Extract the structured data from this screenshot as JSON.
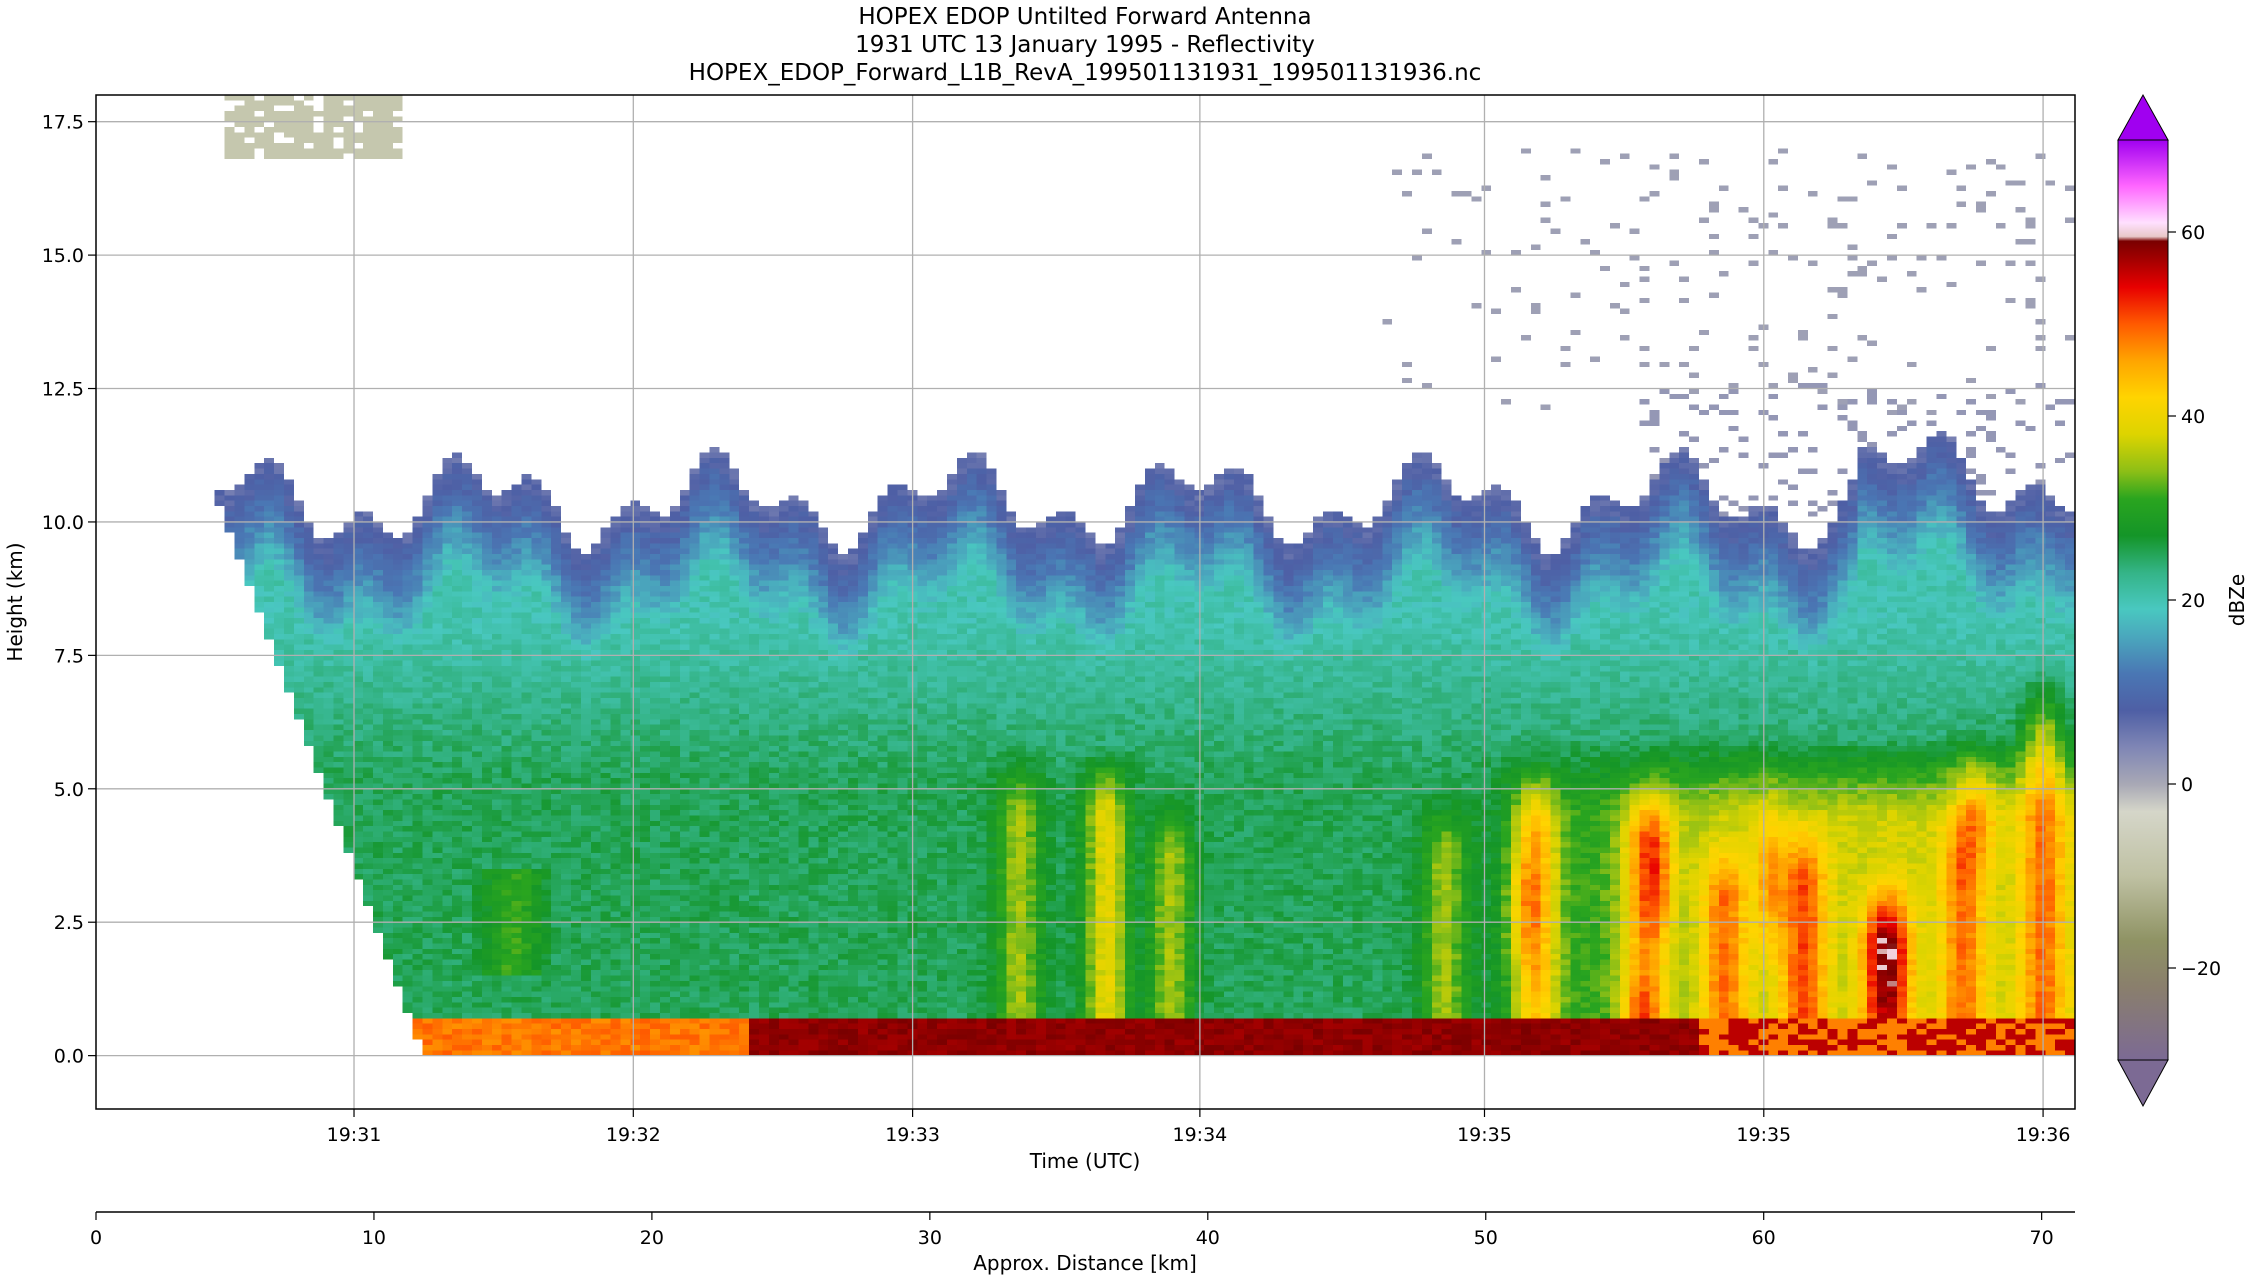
{
  "chart_data": {
    "type": "heatmap",
    "title": [
      "HOPEX EDOP Untilted Forward Antenna",
      "1931 UTC 13 January 1995 - Reflectivity",
      "HOPEX_EDOP_Forward_L1B_RevA_199501131931_199501131936.nc"
    ],
    "xlabel": "Time (UTC)",
    "ylabel": "Height (km)",
    "x2label": "Approx. Distance [km]",
    "colorbar_label": "dBZe",
    "x_ticks": [
      {
        "km": 6.5,
        "label": "19:31"
      },
      {
        "km": 17.0,
        "label": "19:32"
      },
      {
        "km": 27.5,
        "label": "19:33"
      },
      {
        "km": 38.3,
        "label": "19:34"
      },
      {
        "km": 49.0,
        "label": "19:35"
      },
      {
        "km": 59.5,
        "label": "19:35"
      },
      {
        "km": 70.0,
        "label": "19:36"
      }
    ],
    "y_ticks": [
      0.0,
      2.5,
      5.0,
      7.5,
      10.0,
      12.5,
      15.0,
      17.5
    ],
    "y_tick_labels": [
      "0.0",
      "2.5",
      "5.0",
      "7.5",
      "10.0",
      "12.5",
      "15.0",
      "17.5"
    ],
    "x2_ticks": [
      0,
      10,
      20,
      30,
      40,
      50,
      60,
      70
    ],
    "colorbar_ticks": [
      -20,
      0,
      20,
      40,
      60
    ],
    "colorbar_tick_labels": [
      "−20",
      "0",
      "20",
      "40",
      "60"
    ],
    "xlim_km": [
      -3.2,
      71.2
    ],
    "ylim": [
      -1.0,
      18.0
    ],
    "clim": [
      -30,
      70
    ],
    "grid": true,
    "colorbar_position": "right",
    "colormap": [
      {
        "v": -30,
        "c": "#7c6a94"
      },
      {
        "v": -22,
        "c": "#8a7f6c"
      },
      {
        "v": -17,
        "c": "#8f9364"
      },
      {
        "v": -10,
        "c": "#bfc1a3"
      },
      {
        "v": -3,
        "c": "#d5d6c9"
      },
      {
        "v": 0,
        "c": "#a8a8b5"
      },
      {
        "v": 4,
        "c": "#7f86b5"
      },
      {
        "v": 8,
        "c": "#4e5fa5"
      },
      {
        "v": 12,
        "c": "#4a77b4"
      },
      {
        "v": 16,
        "c": "#4aa7bd"
      },
      {
        "v": 19,
        "c": "#49c8c0"
      },
      {
        "v": 23,
        "c": "#34b487"
      },
      {
        "v": 27,
        "c": "#149528"
      },
      {
        "v": 31,
        "c": "#2aa51f"
      },
      {
        "v": 34,
        "c": "#8dbf16"
      },
      {
        "v": 38,
        "c": "#ddd400"
      },
      {
        "v": 42,
        "c": "#ffd400"
      },
      {
        "v": 46,
        "c": "#ffa500"
      },
      {
        "v": 50,
        "c": "#ff5a00"
      },
      {
        "v": 54,
        "c": "#e80000"
      },
      {
        "v": 57,
        "c": "#a40000"
      },
      {
        "v": 59,
        "c": "#7a0000"
      },
      {
        "v": 59.5,
        "c": "#e8c8c8"
      },
      {
        "v": 61,
        "c": "#ffe0ff"
      },
      {
        "v": 65,
        "c": "#ff66ff"
      },
      {
        "v": 70,
        "c": "#a000f0"
      }
    ]
  }
}
